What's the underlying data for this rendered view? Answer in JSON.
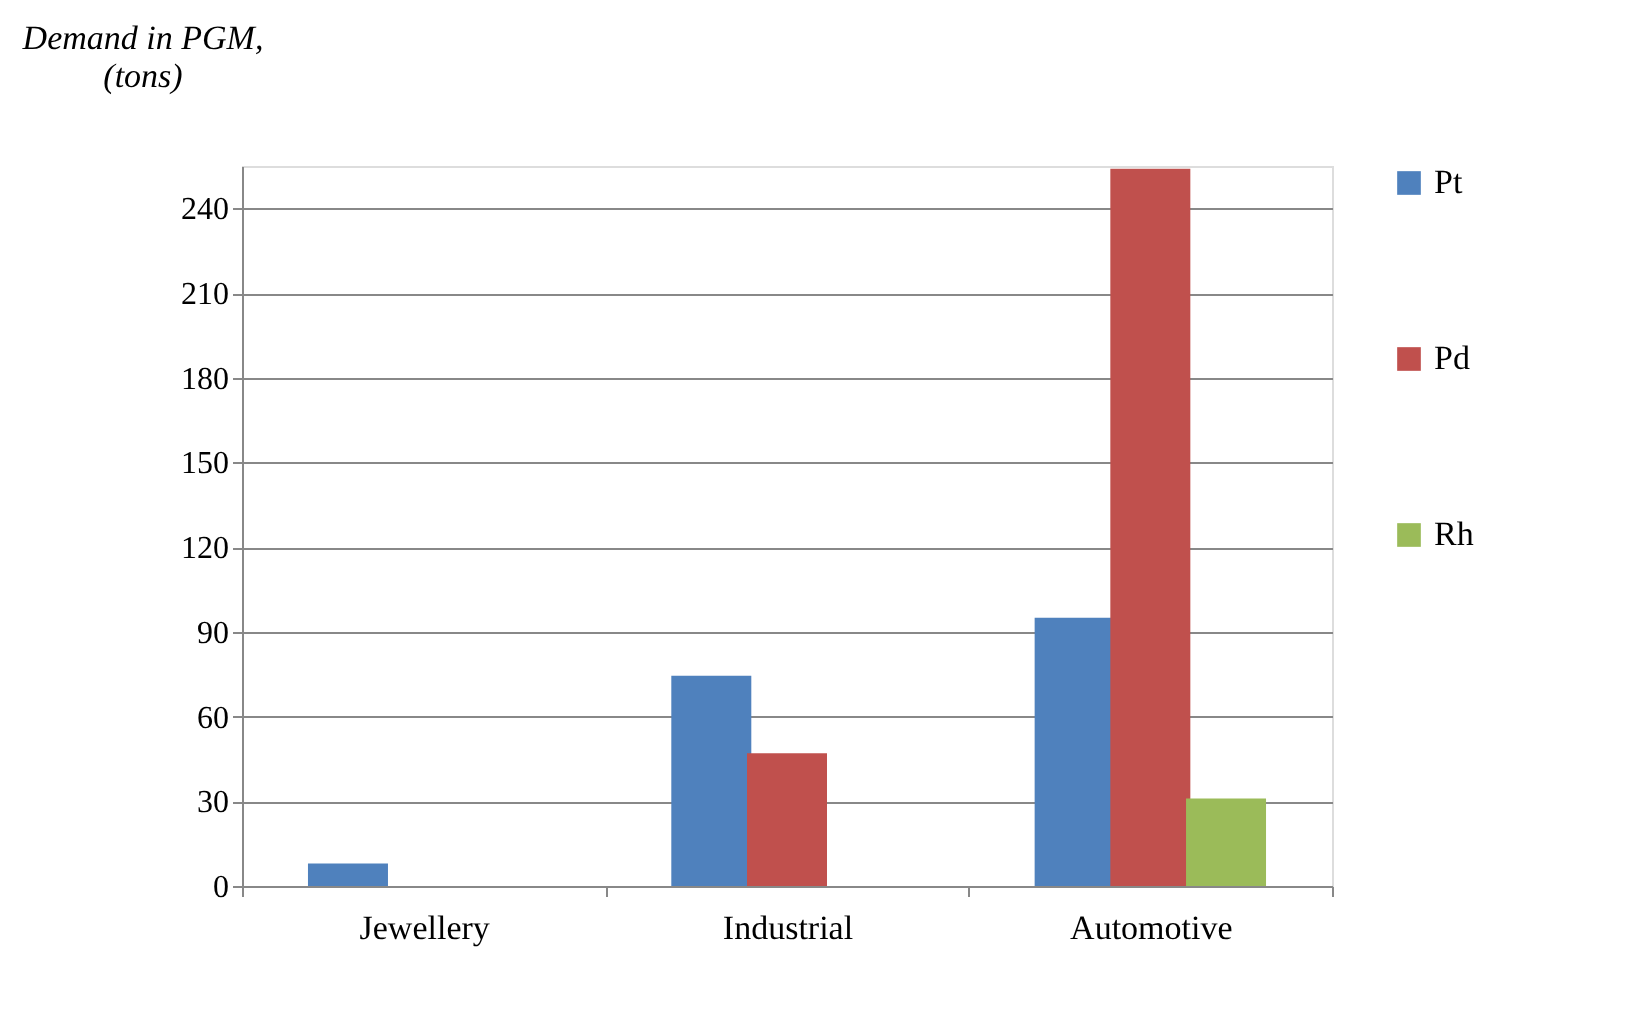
{
  "chart_data": {
    "type": "bar",
    "ylabel": "Demand in PGM,\n(tons)",
    "categories": [
      "Jewellery",
      "Industrial",
      "Automotive"
    ],
    "series": [
      {
        "name": "Pt",
        "color": "#4f81bd",
        "values": [
          8,
          74.5,
          95
        ]
      },
      {
        "name": "Pd",
        "color": "#c0504d",
        "values": [
          0,
          47,
          254
        ]
      },
      {
        "name": "Rh",
        "color": "#9bbb59",
        "values": [
          0,
          0,
          31
        ]
      }
    ],
    "ylim": [
      0,
      255
    ],
    "yticks": [
      0,
      30,
      60,
      90,
      120,
      150,
      180,
      210,
      240
    ],
    "grid": "y",
    "legend": "right"
  }
}
